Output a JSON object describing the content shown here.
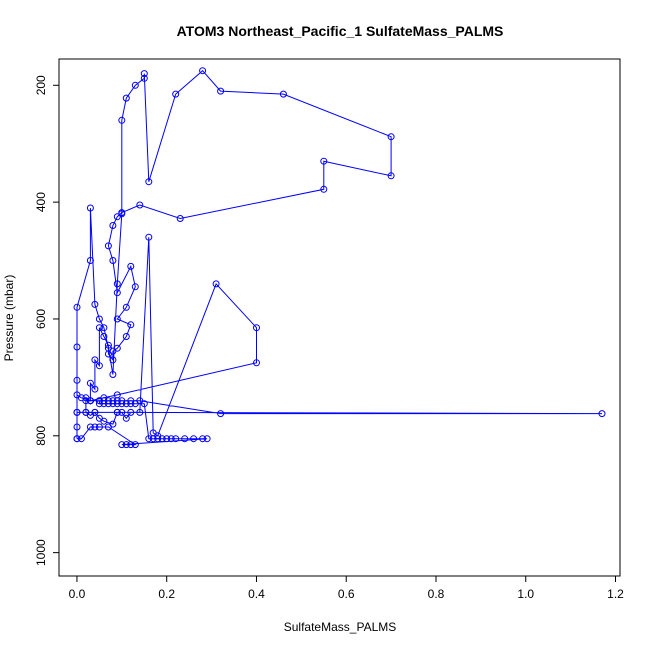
{
  "chart_data": {
    "type": "line",
    "title": "ATOM3 Northeast_Pacific_1 SulfateMass_PALMS",
    "xlabel": "SulfateMass_PALMS",
    "ylabel": "Pressure (mbar)",
    "xlim": [
      -0.04,
      1.21
    ],
    "ylim": [
      1040,
      155
    ],
    "y_reversed": true,
    "x_ticks": [
      0.0,
      0.2,
      0.4,
      0.6,
      0.8,
      1.0,
      1.2
    ],
    "x_tick_labels": [
      "0.0",
      "0.2",
      "0.4",
      "0.6",
      "0.8",
      "1.0",
      "1.2"
    ],
    "y_ticks": [
      200,
      400,
      600,
      800,
      1000
    ],
    "y_tick_labels": [
      "200",
      "400",
      "600",
      "800",
      "1000"
    ],
    "grid": false,
    "legend": "none",
    "series": [
      {
        "color": "#0000ff",
        "marker": "open-circle",
        "x": [
          0.0,
          0.0,
          0.0,
          0.0,
          0.0,
          0.0,
          0.03,
          0.03,
          0.04,
          0.05,
          0.06,
          0.07,
          0.08,
          0.09,
          0.1,
          0.1,
          0.11,
          0.13,
          0.15,
          0.15,
          0.16,
          0.22,
          0.28,
          0.32,
          0.46,
          0.7,
          0.7,
          0.55,
          0.55,
          0.23,
          0.14,
          0.1,
          0.09,
          0.08,
          0.07,
          0.08,
          0.09,
          0.12,
          0.13,
          0.11,
          0.09,
          0.12,
          0.11,
          0.09,
          0.08,
          0.08,
          0.07,
          0.07,
          0.06,
          0.05,
          0.05,
          0.04,
          0.04,
          0.03,
          0.03,
          0.02,
          0.02,
          0.03,
          0.04,
          0.05,
          0.06,
          0.08,
          0.09,
          0.1,
          0.11,
          0.12,
          0.14,
          0.16,
          0.17,
          0.18,
          0.31,
          0.4,
          0.4,
          0.09,
          0.06,
          0.03,
          0.02,
          0.03,
          0.05,
          0.06,
          0.07,
          0.08,
          0.09,
          0.1,
          0.12,
          0.14,
          0.32,
          1.17,
          0.09,
          0.04,
          0.02,
          0.0,
          0.0,
          0.01,
          0.03,
          0.05,
          0.05,
          0.06,
          0.07,
          0.08,
          0.09,
          0.1,
          0.11,
          0.12,
          0.13,
          0.15,
          0.16,
          0.17,
          0.18,
          0.19,
          0.2,
          0.21,
          0.22,
          0.24,
          0.26,
          0.28,
          0.29,
          0.1,
          0.11,
          0.12,
          0.13,
          0.07,
          0.05,
          0.04,
          0.03,
          0.01,
          0.0
        ],
        "y": [
          805,
          785,
          760,
          705,
          648,
          580,
          500,
          410,
          575,
          600,
          615,
          650,
          695,
          540,
          420,
          260,
          222,
          200,
          188,
          180,
          365,
          215,
          175,
          210,
          215,
          288,
          355,
          330,
          378,
          428,
          405,
          418,
          425,
          440,
          475,
          500,
          555,
          510,
          545,
          580,
          600,
          610,
          630,
          650,
          655,
          670,
          660,
          645,
          630,
          615,
          680,
          670,
          720,
          710,
          740,
          735,
          760,
          765,
          760,
          770,
          775,
          780,
          760,
          760,
          770,
          760,
          760,
          460,
          795,
          800,
          540,
          615,
          675,
          730,
          735,
          740,
          740,
          740,
          740,
          740,
          740,
          740,
          740,
          740,
          740,
          740,
          762,
          762,
          760,
          760,
          760,
          760,
          730,
          735,
          740,
          740,
          745,
          745,
          745,
          745,
          745,
          745,
          745,
          745,
          745,
          745,
          805,
          805,
          805,
          805,
          805,
          805,
          805,
          805,
          805,
          805,
          805,
          815,
          815,
          815,
          815,
          785,
          785,
          785,
          785,
          805,
          805
        ]
      }
    ]
  }
}
